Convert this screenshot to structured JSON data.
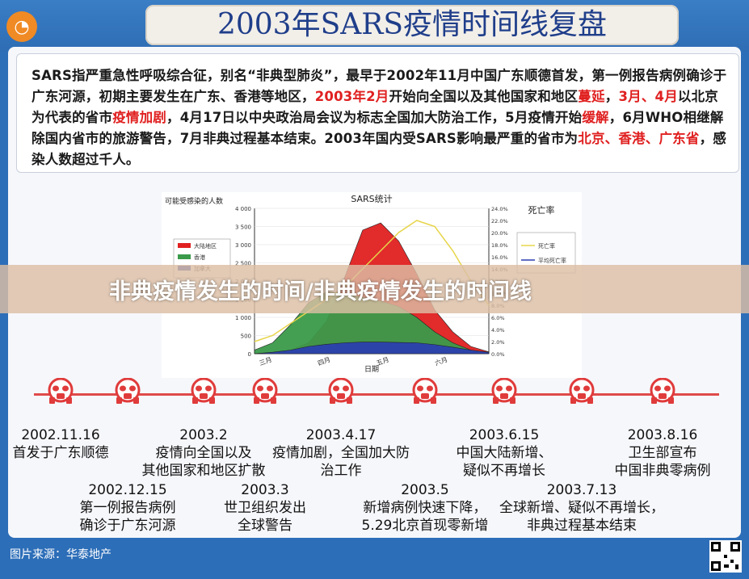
{
  "header": {
    "title": "2003年SARS疫情时间线复盘",
    "logo_icon": "brand-logo-icon"
  },
  "intro": {
    "parts": [
      {
        "t": "SARS指严重急性呼吸综合征，别名“非典型肺炎”，最早于2002年11月中国广东顺德首发，第一例报告病例确诊于广东河源，初期主要发生在广东、香港等地区，",
        "hl": false
      },
      {
        "t": "2003年2月",
        "hl": true
      },
      {
        "t": "开始向全国以及其他国家和地区",
        "hl": false
      },
      {
        "t": "蔓延",
        "hl": true
      },
      {
        "t": "，",
        "hl": false
      },
      {
        "t": "3月、4月",
        "hl": true
      },
      {
        "t": "以北京为代表的省市",
        "hl": false
      },
      {
        "t": "疫情加剧",
        "hl": true
      },
      {
        "t": "，4月17日以中央政治局会议为标志全国加大防治工作，5月疫情开始",
        "hl": false
      },
      {
        "t": "缓解",
        "hl": true
      },
      {
        "t": "，6月WHO相继解除国内省市的旅游警告，7月非典过程基本结束。2003年国内受SARS影响最严重的省市为",
        "hl": false
      },
      {
        "t": "北京、香港、广东省",
        "hl": true
      },
      {
        "t": "，感染人数超过千人。",
        "hl": false
      }
    ]
  },
  "chart_data": {
    "type": "area",
    "title": "SARS统计",
    "ylabel_left": "可能受感染的人数",
    "ylabel_right": "死亡率",
    "xlabel": "日期",
    "y_ticks": [
      "4 000",
      "3 500",
      "3 000",
      "2 500",
      "2 000",
      "1 500",
      "1 000",
      "500",
      "0"
    ],
    "y2_ticks": [
      "24.0%",
      "22.0%",
      "20.0%",
      "18.0%",
      "16.0%",
      "14.0%",
      "12.0%",
      "10.0%",
      "8.0%",
      "6.0%",
      "4.0%",
      "2.0%",
      "0.0%"
    ],
    "x_ticks": [
      "三月",
      "四月",
      "五月",
      "六月"
    ],
    "ylim": [
      0,
      4000
    ],
    "y2lim": [
      0,
      24
    ],
    "legend_left": [
      "大陆地区",
      "香港",
      "加拿大"
    ],
    "legend_right": [
      "死亡率",
      "平均死亡率"
    ],
    "series": [
      {
        "name": "大陆地区",
        "color": "#e02020",
        "values": [
          0,
          0,
          100,
          300,
          900,
          2100,
          3400,
          3600,
          3100,
          2200,
          1200,
          600,
          200,
          50
        ]
      },
      {
        "name": "香港",
        "color": "#3a9a4a",
        "values": [
          100,
          300,
          800,
          1400,
          1700,
          1650,
          1550,
          1450,
          1300,
          1000,
          600,
          300,
          100,
          30
        ]
      },
      {
        "name": "加拿大",
        "color": "#2b3fb0",
        "values": [
          0,
          40,
          100,
          200,
          260,
          300,
          320,
          320,
          310,
          300,
          250,
          180,
          100,
          40
        ]
      }
    ]
  },
  "banner": {
    "text": "非典疫情发生的时间/非典疫情发生的时间线"
  },
  "timeline": {
    "events_top": [
      {
        "date": "2002.11.16",
        "desc": [
          "首发于广东顺德"
        ]
      },
      {
        "date": "2003.2",
        "desc": [
          "疫情向全国以及",
          "其他国家和地区扩散"
        ]
      },
      {
        "date": "2003.4.17",
        "desc": [
          "疫情加剧，全国加大防",
          "治工作"
        ]
      },
      {
        "date": "2003.6.15",
        "desc": [
          "中国大陆新增、",
          "疑似不再增长"
        ]
      },
      {
        "date": "2003.8.16",
        "desc": [
          "卫生部宣布",
          "中国非典零病例"
        ]
      }
    ],
    "events_bottom": [
      {
        "date": "2002.12.15",
        "desc": [
          "第一例报告病例",
          "确诊于广东河源"
        ]
      },
      {
        "date": "2003.3",
        "desc": [
          "世卫组织发出",
          "全球警告"
        ]
      },
      {
        "date": "2003.5",
        "desc": [
          "新增病例快速下降，",
          "5.29北京首现零新增"
        ]
      },
      {
        "date": "2003.7.13",
        "desc": [
          "全球新增、疑似不再增长，",
          "非典过程基本结束"
        ]
      }
    ]
  },
  "footer": {
    "source": "图片来源：华泰地产"
  }
}
